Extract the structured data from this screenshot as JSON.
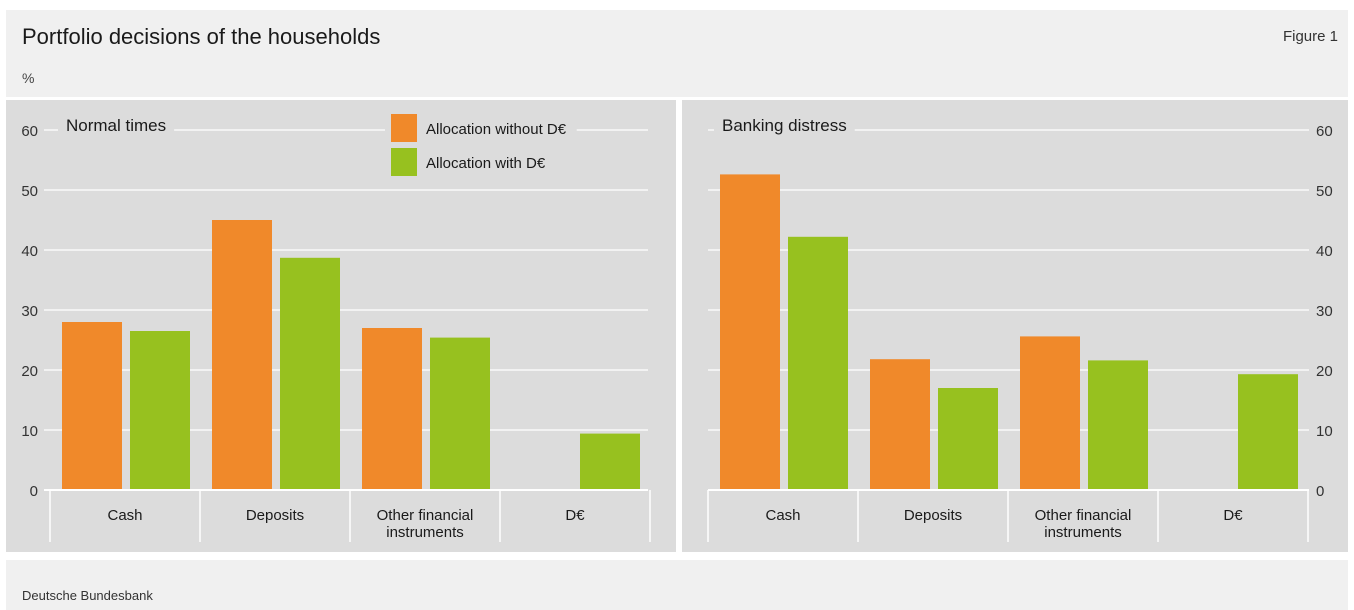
{
  "header": {
    "title": "Portfolio decisions of the households",
    "figure_label": "Figure 1",
    "unit": "%"
  },
  "footer": {
    "source": "Deutsche Bundesbank"
  },
  "colors": {
    "without": "#f0892a",
    "with": "#97c11f",
    "panel_bg": "#dcdcdc",
    "grid": "#ffffff"
  },
  "chart_data": [
    {
      "type": "bar",
      "title": "Normal times",
      "categories": [
        "Cash",
        "Deposits",
        "Other financial instruments",
        "D€"
      ],
      "category_lines": [
        [
          "Cash"
        ],
        [
          "Deposits"
        ],
        [
          "Other financial",
          "instruments"
        ],
        [
          "D€"
        ]
      ],
      "series": [
        {
          "name": "Allocation without D€",
          "values": [
            28,
            45,
            27,
            null
          ]
        },
        {
          "name": "Allocation with D€",
          "values": [
            26.5,
            38.7,
            25.4,
            9.4
          ]
        }
      ],
      "ylim": [
        0,
        60
      ],
      "yticks": [
        0,
        10,
        20,
        30,
        40,
        50,
        60
      ],
      "y_axis_side": "left",
      "legend": "top-right",
      "grid": true
    },
    {
      "type": "bar",
      "title": "Banking distress",
      "categories": [
        "Cash",
        "Deposits",
        "Other financial instruments",
        "D€"
      ],
      "category_lines": [
        [
          "Cash"
        ],
        [
          "Deposits"
        ],
        [
          "Other financial",
          "instruments"
        ],
        [
          "D€"
        ]
      ],
      "series": [
        {
          "name": "Allocation without D€",
          "values": [
            52.6,
            21.8,
            25.6,
            null
          ]
        },
        {
          "name": "Allocation with D€",
          "values": [
            42.2,
            17,
            21.6,
            19.3
          ]
        }
      ],
      "ylim": [
        0,
        60
      ],
      "yticks": [
        0,
        10,
        20,
        30,
        40,
        50,
        60
      ],
      "y_axis_side": "right",
      "grid": true
    }
  ]
}
